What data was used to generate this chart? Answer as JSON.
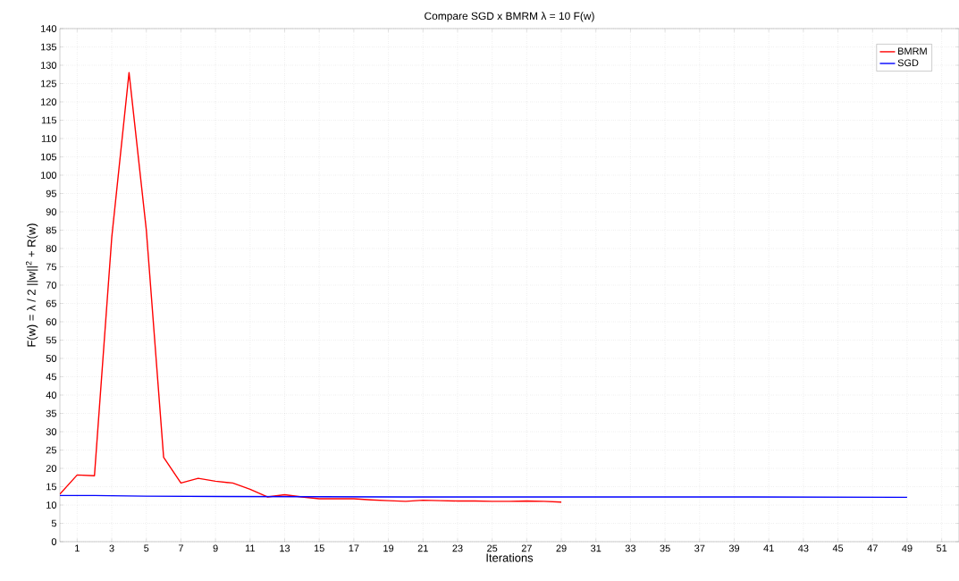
{
  "chart_data": {
    "type": "line",
    "title": "Compare SGD x BMRM λ = 10 F(w)",
    "xlabel": "Iterations",
    "ylabel": "F(w) = λ / 2 ||w||$^{2}$ + R(w)",
    "series": [
      {
        "name": "BMRM",
        "color": "#ff0000",
        "x": [
          0,
          1,
          2,
          3,
          4,
          5,
          6,
          7,
          8,
          9,
          10,
          11,
          12,
          13,
          14,
          15,
          16,
          17,
          18,
          19,
          20,
          21,
          22,
          23,
          24,
          25,
          26,
          27,
          28,
          29
        ],
        "values": [
          13,
          18.2,
          18,
          83,
          128,
          85,
          23,
          16,
          17.3,
          16.5,
          16,
          14.3,
          12.2,
          12.8,
          12.2,
          11.7,
          11.7,
          11.7,
          11.4,
          11.2,
          11,
          11.3,
          11.2,
          11.1,
          11.1,
          11,
          11,
          11.1,
          11,
          10.8
        ]
      },
      {
        "name": "SGD",
        "color": "#0000ff",
        "x": [
          0,
          2,
          5,
          10,
          20,
          30,
          40,
          49
        ],
        "values": [
          12.6,
          12.6,
          12.4,
          12.3,
          12.2,
          12.2,
          12.2,
          12.1
        ]
      }
    ],
    "xlim": [
      0,
      52
    ],
    "ylim": [
      0,
      140
    ],
    "xticks": [
      1,
      3,
      5,
      7,
      9,
      11,
      13,
      15,
      17,
      19,
      21,
      23,
      25,
      27,
      29,
      31,
      33,
      35,
      37,
      39,
      41,
      43,
      45,
      47,
      49,
      51
    ],
    "yticks": [
      0,
      5,
      10,
      15,
      20,
      25,
      30,
      35,
      40,
      45,
      50,
      55,
      60,
      65,
      70,
      75,
      80,
      85,
      90,
      95,
      100,
      105,
      110,
      115,
      120,
      125,
      130,
      135,
      140
    ],
    "grid": true,
    "legend": "top right",
    "marker": "none",
    "line_style": "solid"
  }
}
